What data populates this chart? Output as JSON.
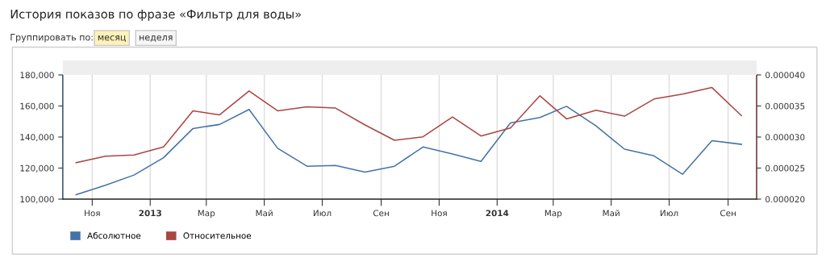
{
  "chart_data": {
    "type": "line",
    "title": "История показов по фразе «Фильтр для воды»",
    "annotations": [
      "Группировать по:",
      "месяц",
      "неделя"
    ],
    "x": [
      "2012-10-15",
      "2012-11-15",
      "2012-12-15",
      "2013-01-15",
      "2013-02-15",
      "2013-03-15",
      "2013-04-15",
      "2013-05-15",
      "2013-06-15",
      "2013-07-15",
      "2013-08-15",
      "2013-09-15",
      "2013-10-15",
      "2013-11-15",
      "2013-12-15",
      "2014-01-15",
      "2014-02-15",
      "2014-03-15",
      "2014-04-15",
      "2014-05-15",
      "2014-06-15",
      "2014-07-15",
      "2014-08-15",
      "2014-09-15"
    ],
    "series": [
      {
        "name": "Абсолютное",
        "color": "#4572a7",
        "values": [
          102900,
          109000,
          115500,
          126700,
          145500,
          148100,
          157800,
          132800,
          121200,
          121700,
          117400,
          121200,
          133600,
          129100,
          124300,
          149100,
          152600,
          159800,
          147200,
          132200,
          127900,
          116000,
          137600,
          135300
        ]
      },
      {
        "name": "Относительное",
        "color": "#aa4643",
        "axis": "y2",
        "values": [
          2.586e-05,
          2.69e-05,
          2.711e-05,
          2.841e-05,
          3.422e-05,
          3.358e-05,
          3.741e-05,
          3.422e-05,
          3.487e-05,
          3.466e-05,
          3.194e-05,
          2.948e-05,
          3.004e-05,
          3.323e-05,
          3.017e-05,
          3.147e-05,
          3.664e-05,
          3.293e-05,
          3.431e-05,
          3.336e-05,
          3.612e-05,
          3.69e-05,
          3.797e-05,
          3.345e-05
        ]
      }
    ],
    "xlim": [
      "2012-10-01",
      "2014-10-01"
    ],
    "xticks": [
      {
        "value": "2012-11-01",
        "label": "Ноя"
      },
      {
        "value": "2013-01-01",
        "label": "2013"
      },
      {
        "value": "2013-03-01",
        "label": "Мар"
      },
      {
        "value": "2013-05-01",
        "label": "Май"
      },
      {
        "value": "2013-07-01",
        "label": "Июл"
      },
      {
        "value": "2013-09-01",
        "label": "Сен"
      },
      {
        "value": "2013-11-01",
        "label": "Ноя"
      },
      {
        "value": "2014-01-01",
        "label": "2014"
      },
      {
        "value": "2014-03-01",
        "label": "Мар"
      },
      {
        "value": "2014-05-01",
        "label": "Май"
      },
      {
        "value": "2014-07-01",
        "label": "Июл"
      },
      {
        "value": "2014-09-01",
        "label": "Сен"
      }
    ],
    "ylim": [
      100000,
      180000
    ],
    "yticks": [
      {
        "value": 100000,
        "label": "100,000"
      },
      {
        "value": 120000,
        "label": "120,000"
      },
      {
        "value": 140000,
        "label": "140,000"
      },
      {
        "value": 160000,
        "label": "160,000"
      },
      {
        "value": 180000,
        "label": "180,000"
      }
    ],
    "y2lim": [
      2e-05,
      4e-05
    ],
    "y2ticks": [
      {
        "value": 2e-05,
        "label": "0.000020"
      },
      {
        "value": 2.5e-05,
        "label": "0.000025"
      },
      {
        "value": 3e-05,
        "label": "0.000030"
      },
      {
        "value": 3.5e-05,
        "label": "0.000035"
      },
      {
        "value": 4e-05,
        "label": "0.000040"
      }
    ],
    "grid": "x",
    "legend": "bottom left",
    "marker": "none",
    "line_style": "solid"
  }
}
